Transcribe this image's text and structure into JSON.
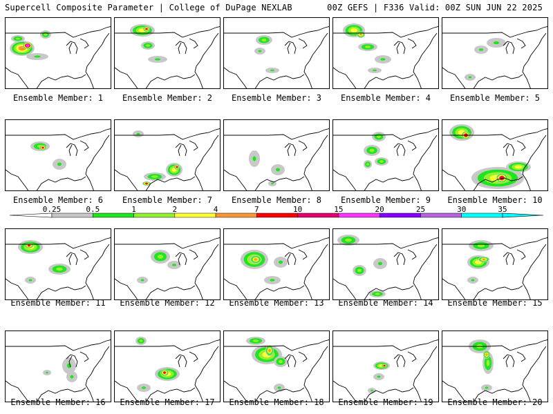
{
  "header": {
    "title": "Supercell Composite Parameter | College of DuPage NEXLAB",
    "run_info": "00Z GEFS | F336 Valid: 00Z SUN JUN 22 2025"
  },
  "colorbar": {
    "ticks": [
      "0.25",
      "0.5",
      "1",
      "2",
      "4",
      "7",
      "10",
      "15",
      "20",
      "25",
      "30",
      "35"
    ],
    "colors": [
      "#c8c8c8",
      "#1ee61e",
      "#96f032",
      "#ffff32",
      "#fa9632",
      "#ff0000",
      "#e6006e",
      "#ff32ff",
      "#8200ff",
      "#b464dc",
      "#00ffff"
    ]
  },
  "members": [
    {
      "label": "Ensemble Member: 1",
      "blobs": [
        [
          24,
          44,
          18,
          11,
          4
        ],
        [
          32,
          40,
          7,
          5,
          8
        ],
        [
          18,
          30,
          10,
          5,
          2
        ],
        [
          58,
          24,
          8,
          6,
          2
        ],
        [
          46,
          56,
          16,
          5,
          1
        ]
      ]
    },
    {
      "label": "Ensemble Member: 2",
      "blobs": [
        [
          40,
          18,
          18,
          9,
          3
        ],
        [
          46,
          16,
          5,
          4,
          5
        ],
        [
          48,
          40,
          10,
          6,
          2
        ],
        [
          62,
          60,
          14,
          5,
          1
        ]
      ]
    },
    {
      "label": "Ensemble Member: 3",
      "blobs": [
        [
          58,
          32,
          12,
          7,
          2
        ],
        [
          52,
          48,
          8,
          5,
          1
        ],
        [
          70,
          76,
          10,
          4,
          1
        ]
      ]
    },
    {
      "label": "Ensemble Member: 4",
      "blobs": [
        [
          30,
          18,
          16,
          10,
          3
        ],
        [
          40,
          24,
          6,
          5,
          4
        ],
        [
          50,
          42,
          14,
          6,
          2
        ],
        [
          72,
          60,
          12,
          6,
          1
        ],
        [
          60,
          76,
          10,
          4,
          1
        ]
      ]
    },
    {
      "label": "Ensemble Member: 5",
      "blobs": [
        [
          78,
          36,
          14,
          7,
          1
        ],
        [
          56,
          46,
          10,
          6,
          1
        ],
        [
          40,
          86,
          8,
          5,
          1
        ]
      ]
    },
    {
      "label": "Ensemble Member: 6",
      "blobs": [
        [
          50,
          38,
          14,
          7,
          2
        ],
        [
          54,
          40,
          5,
          4,
          5
        ],
        [
          78,
          64,
          10,
          8,
          1
        ]
      ]
    },
    {
      "label": "Ensemble Member: 7",
      "blobs": [
        [
          86,
          72,
          12,
          10,
          3
        ],
        [
          90,
          68,
          4,
          4,
          5
        ],
        [
          58,
          82,
          16,
          6,
          2
        ],
        [
          46,
          92,
          6,
          3,
          5
        ],
        [
          34,
          20,
          8,
          5,
          1
        ]
      ]
    },
    {
      "label": "Ensemble Member: 8",
      "blobs": [
        [
          44,
          56,
          8,
          12,
          1
        ],
        [
          78,
          72,
          10,
          8,
          1
        ],
        [
          70,
          92,
          6,
          4,
          1
        ]
      ]
    },
    {
      "label": "Ensemble Member: 9",
      "blobs": [
        [
          56,
          44,
          12,
          8,
          2
        ],
        [
          70,
          60,
          10,
          6,
          2
        ],
        [
          66,
          24,
          10,
          7,
          2
        ],
        [
          50,
          64,
          6,
          6,
          2
        ]
      ]
    },
    {
      "label": "Ensemble Member: 10",
      "blobs": [
        [
          28,
          18,
          18,
          12,
          3
        ],
        [
          34,
          22,
          6,
          6,
          6
        ],
        [
          80,
          84,
          38,
          16,
          3
        ],
        [
          86,
          84,
          8,
          7,
          6
        ],
        [
          110,
          68,
          18,
          8,
          3
        ]
      ]
    },
    {
      "label": "Ensemble Member: 11",
      "blobs": [
        [
          36,
          26,
          18,
          10,
          3
        ],
        [
          34,
          24,
          6,
          4,
          5
        ],
        [
          78,
          58,
          16,
          8,
          2
        ],
        [
          36,
          74,
          8,
          5,
          1
        ]
      ]
    },
    {
      "label": "Ensemble Member: 12",
      "blobs": [
        [
          66,
          40,
          14,
          10,
          2
        ],
        [
          86,
          52,
          10,
          6,
          1
        ],
        [
          40,
          74,
          8,
          5,
          1
        ]
      ]
    },
    {
      "label": "Ensemble Member: 13",
      "blobs": [
        [
          44,
          44,
          20,
          14,
          3
        ],
        [
          46,
          44,
          8,
          6,
          4
        ],
        [
          82,
          48,
          10,
          8,
          1
        ],
        [
          70,
          74,
          12,
          6,
          1
        ]
      ]
    },
    {
      "label": "Ensemble Member: 14",
      "blobs": [
        [
          22,
          16,
          16,
          8,
          2
        ],
        [
          38,
          60,
          10,
          8,
          2
        ],
        [
          68,
          50,
          10,
          8,
          1
        ],
        [
          64,
          94,
          12,
          5,
          2
        ]
      ]
    },
    {
      "label": "Ensemble Member: 15",
      "blobs": [
        [
          56,
          24,
          18,
          8,
          2
        ],
        [
          52,
          48,
          16,
          10,
          3
        ],
        [
          60,
          44,
          8,
          4,
          4
        ],
        [
          44,
          74,
          8,
          5,
          1
        ]
      ]
    },
    {
      "label": "Ensemble Member: 16",
      "blobs": [
        [
          92,
          50,
          10,
          12,
          1
        ],
        [
          96,
          66,
          8,
          8,
          1
        ],
        [
          60,
          60,
          6,
          4,
          1
        ]
      ]
    },
    {
      "label": "Ensemble Member: 17",
      "blobs": [
        [
          38,
          14,
          8,
          6,
          2
        ],
        [
          76,
          62,
          18,
          10,
          3
        ],
        [
          72,
          60,
          6,
          5,
          5
        ],
        [
          42,
          82,
          10,
          6,
          1
        ]
      ]
    },
    {
      "label": "Ensemble Member: 18",
      "blobs": [
        [
          62,
          34,
          22,
          14,
          3
        ],
        [
          66,
          28,
          6,
          8,
          4
        ],
        [
          46,
          14,
          14,
          6,
          2
        ],
        [
          82,
          44,
          10,
          8,
          2
        ],
        [
          80,
          82,
          8,
          6,
          1
        ]
      ]
    },
    {
      "label": "Ensemble Member: 19",
      "blobs": [
        [
          70,
          50,
          12,
          6,
          3
        ],
        [
          74,
          50,
          4,
          3,
          5
        ],
        [
          66,
          66,
          8,
          5,
          1
        ],
        [
          56,
          86,
          6,
          4,
          1
        ]
      ]
    },
    {
      "label": "Ensemble Member: 20",
      "blobs": [
        [
          54,
          22,
          16,
          10,
          2
        ],
        [
          66,
          46,
          8,
          16,
          2
        ],
        [
          64,
          34,
          5,
          6,
          4
        ],
        [
          64,
          82,
          8,
          5,
          1
        ]
      ]
    }
  ]
}
